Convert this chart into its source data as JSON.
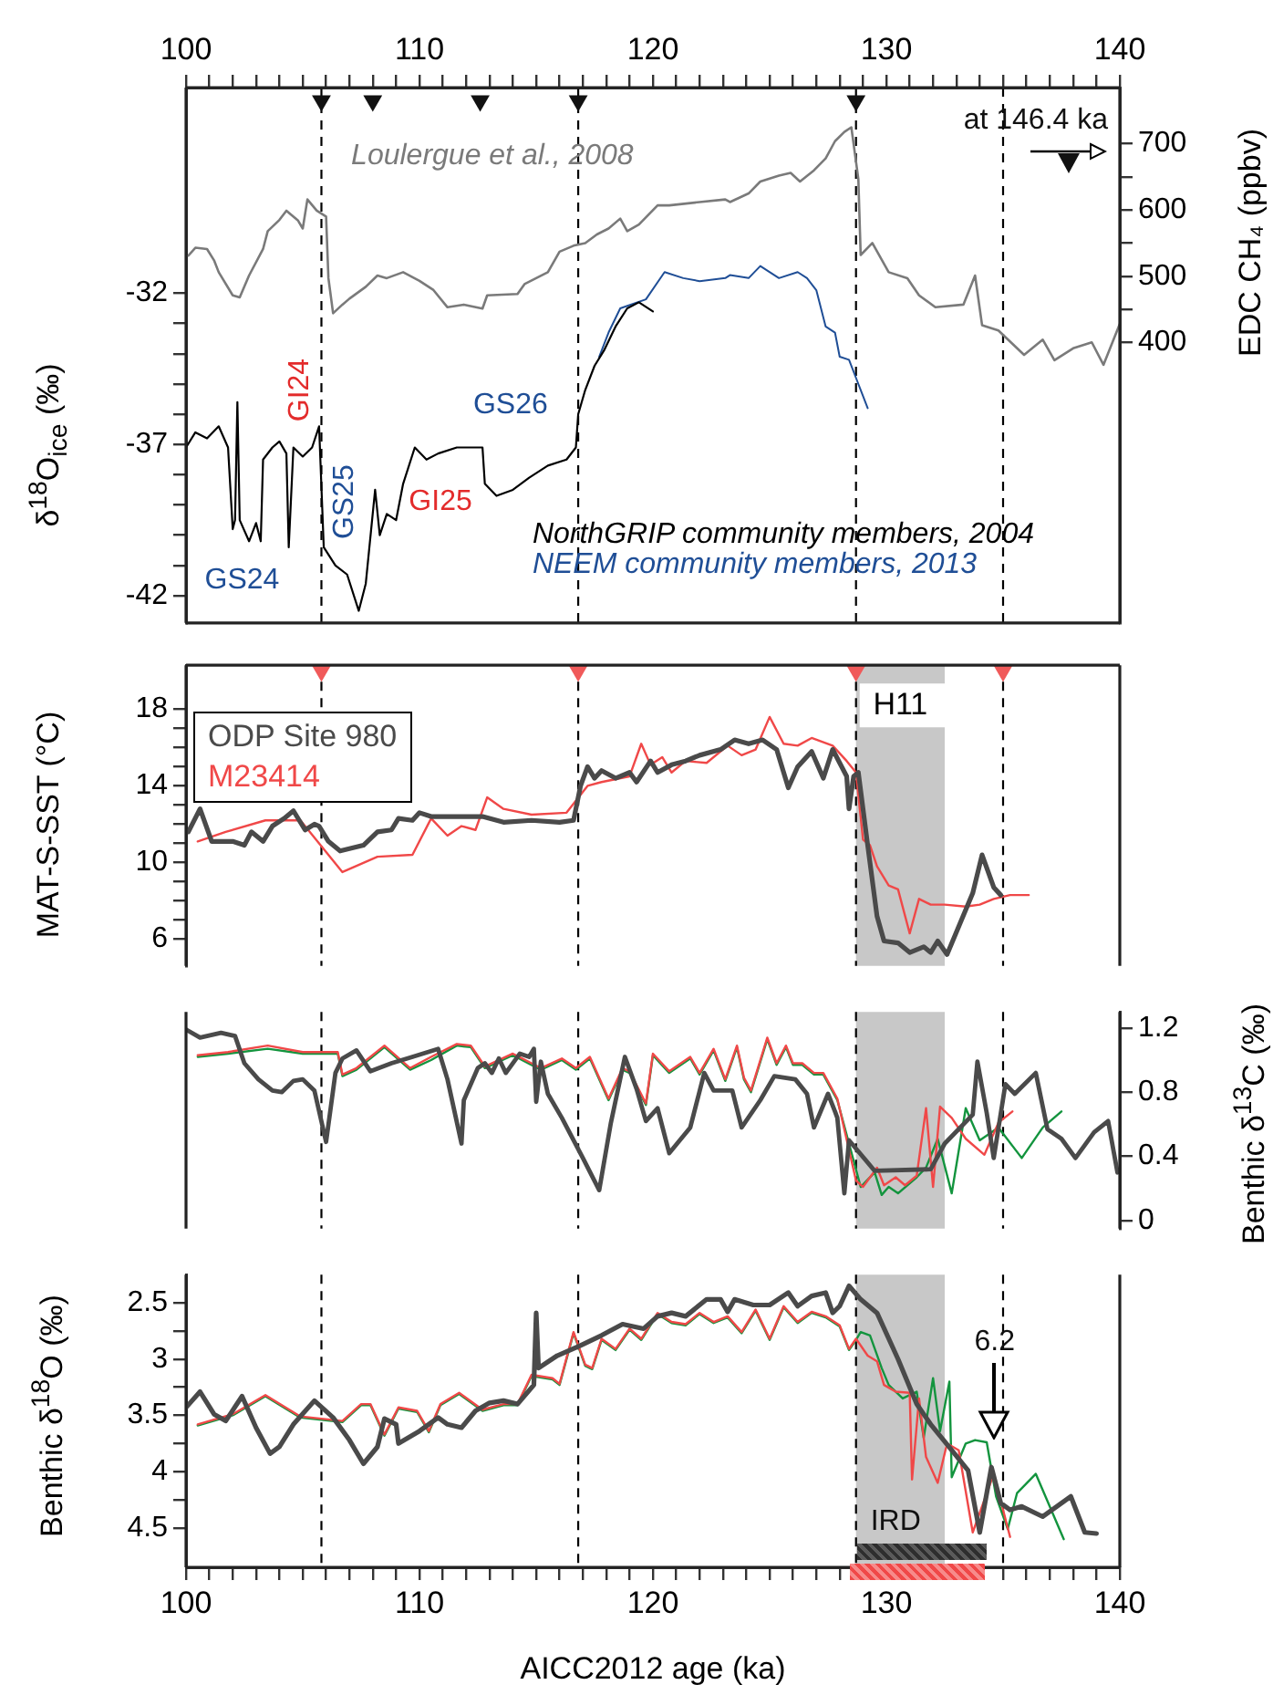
{
  "chart_data": [
    {
      "type": "line",
      "xlim": [
        100,
        140
      ],
      "xticks": [
        100,
        {
          "value": 101,
          "label": null
        },
        {
          "value": 102,
          "label": null
        },
        {
          "value": 103,
          "label": null
        },
        {
          "value": 104,
          "label": null
        },
        {
          "value": 105,
          "label": null
        },
        {
          "value": 106,
          "label": null
        },
        {
          "value": 107,
          "label": null
        },
        {
          "value": 108,
          "label": null
        },
        {
          "value": 109,
          "label": null
        },
        110,
        {
          "value": 111,
          "label": null
        },
        {
          "value": 112,
          "label": null
        },
        {
          "value": 113,
          "label": null
        },
        {
          "value": 114,
          "label": null
        },
        {
          "value": 115,
          "label": null
        },
        {
          "value": 116,
          "label": null
        },
        {
          "value": 117,
          "label": null
        },
        {
          "value": 118,
          "label": null
        },
        {
          "value": 119,
          "label": null
        },
        120,
        {
          "value": 121,
          "label": null
        },
        {
          "value": 122,
          "label": null
        },
        {
          "value": 123,
          "label": null
        },
        {
          "value": 124,
          "label": null
        },
        {
          "value": 125,
          "label": null
        },
        {
          "value": 126,
          "label": null
        },
        {
          "value": 127,
          "label": null
        },
        {
          "value": 128,
          "label": null
        },
        {
          "value": 129,
          "label": null
        },
        130,
        {
          "value": 131,
          "label": null
        },
        {
          "value": 132,
          "label": null
        },
        {
          "value": 133,
          "label": null
        },
        {
          "value": 134,
          "label": null
        },
        {
          "value": 135,
          "label": null
        },
        {
          "value": 136,
          "label": null
        },
        {
          "value": 137,
          "label": null
        },
        {
          "value": 138,
          "label": null
        },
        {
          "value": 139,
          "label": null
        },
        140
      ],
      "ylim": [
        -42.9,
        -25.2
      ],
      "yticks": [
        -42,
        {
          "value": -41,
          "label": null
        },
        {
          "value": -40,
          "label": null
        },
        {
          "value": -39,
          "label": null
        },
        {
          "value": -38,
          "label": null
        },
        -37,
        {
          "value": -36,
          "label": null
        },
        {
          "value": -35,
          "label": null
        },
        {
          "value": -34,
          "label": null
        },
        {
          "value": -33,
          "label": null
        },
        -32
      ],
      "ylabel": "δ$^{18}$O$_{ice}$ (‰)",
      "y2lim": [
        -24,
        785
      ],
      "y2ticks": [
        400,
        {
          "value": 450,
          "label": null
        },
        500,
        {
          "value": 550,
          "label": null
        },
        600,
        {
          "value": 650,
          "label": null
        },
        700
      ],
      "y2label": "EDC CH₄ (ppbv)",
      "series": [
        {
          "name": "Loulergue et al., 2008",
          "color": "#7a7a7a",
          "axis": "y2",
          "x": [
            100.1,
            100.4,
            100.9,
            101.2,
            101.4,
            102.0,
            102.3,
            102.7,
            103.3,
            103.5,
            104.0,
            104.3,
            104.8,
            105.0,
            105.2,
            105.6,
            106.0,
            106.1,
            106.3,
            106.7,
            107.0,
            107.7,
            108.2,
            108.6,
            109.3,
            110.0,
            110.6,
            111.2,
            111.9,
            112.7,
            112.9,
            114.2,
            114.5,
            115.0,
            115.5,
            116.0,
            116.6,
            117.1,
            117.6,
            118.1,
            118.6,
            118.9,
            119.4,
            120.2,
            120.7,
            122.0,
            123.1,
            123.3,
            124.1,
            124.6,
            125.4,
            125.9,
            126.3,
            126.9,
            127.4,
            127.8,
            128.2,
            128.5,
            128.8,
            128.9,
            129.4,
            130.1,
            130.9,
            131.4,
            132.1,
            133.3,
            133.8,
            134.1,
            134.8,
            135.9,
            136.7,
            137.2,
            138.0,
            138.8,
            139.3,
            140.0
          ],
          "values": [
            531,
            543,
            541,
            524,
            506,
            471,
            468,
            501,
            541,
            568,
            585,
            599,
            584,
            572,
            616,
            599,
            590,
            497,
            444,
            457,
            466,
            484,
            501,
            497,
            506,
            493,
            479,
            453,
            457,
            451,
            471,
            473,
            488,
            497,
            506,
            537,
            546,
            550,
            563,
            572,
            587,
            568,
            578,
            607,
            607,
            612,
            616,
            612,
            625,
            643,
            652,
            656,
            643,
            660,
            678,
            704,
            718,
            725,
            647,
            532,
            550,
            506,
            497,
            471,
            453,
            457,
            501,
            426,
            418,
            381,
            404,
            373,
            391,
            400,
            366,
            428
          ]
        },
        {
          "name": "NorthGRIP community members, 2004",
          "color": "#000000",
          "x": [
            100.0,
            100.4,
            100.9,
            101.4,
            101.8,
            102.0,
            102.1,
            102.2,
            102.3,
            102.7,
            103.0,
            103.2,
            103.3,
            103.7,
            104.0,
            104.3,
            104.4,
            104.6,
            105.0,
            105.4,
            105.7,
            105.9,
            106.4,
            106.9,
            107.4,
            107.7,
            108.1,
            108.3,
            108.6,
            109.0,
            109.3,
            109.8,
            110.3,
            110.8,
            111.6,
            112.7,
            112.8,
            113.3,
            114.0,
            114.7,
            115.5,
            116.3,
            116.7,
            116.8,
            117.1,
            117.5,
            117.9,
            118.4,
            118.9,
            119.4,
            120.0
          ],
          "values": [
            -37.1,
            -36.6,
            -36.8,
            -36.4,
            -37.1,
            -39.8,
            -39.5,
            -35.6,
            -39.5,
            -40.2,
            -39.6,
            -40.2,
            -37.5,
            -37.1,
            -36.9,
            -37.3,
            -40.4,
            -37.1,
            -37.4,
            -37.1,
            -36.4,
            -40.4,
            -41.0,
            -41.3,
            -42.5,
            -41.6,
            -38.5,
            -40.0,
            -39.3,
            -39.5,
            -38.3,
            -37.1,
            -37.5,
            -37.3,
            -37.1,
            -37.1,
            -38.3,
            -38.7,
            -38.5,
            -38.1,
            -37.7,
            -37.5,
            -37.1,
            -36.0,
            -35.2,
            -34.4,
            -33.9,
            -33.1,
            -32.5,
            -32.3,
            -32.6
          ]
        },
        {
          "name": "NEEM community members, 2013",
          "color": "#1f4e96",
          "x": [
            117.7,
            118.1,
            118.6,
            119.7,
            120.5,
            121.3,
            122.0,
            123.1,
            123.3,
            124.1,
            124.6,
            125.4,
            126.2,
            126.6,
            127.0,
            127.4,
            127.8,
            128.0,
            128.4,
            128.7,
            129.0,
            129.2
          ],
          "values": [
            -34.1,
            -33.3,
            -32.5,
            -32.2,
            -31.3,
            -31.5,
            -31.6,
            -31.5,
            -31.4,
            -31.5,
            -31.1,
            -31.5,
            -31.3,
            -31.5,
            -31.9,
            -33.1,
            -33.3,
            -34.1,
            -34.2,
            -34.8,
            -35.4,
            -35.8
          ]
        },
        {
          "type": "scatter",
          "marker": "triangle",
          "color": "#111111",
          "axis": "y2",
          "x": [
            105.8,
            108.0,
            112.6,
            116.8,
            128.7
          ],
          "values": [
            765,
            765,
            765,
            765,
            765
          ]
        }
      ],
      "annotations": [
        "GS24",
        "GI24",
        "GS25",
        "GI25",
        "GS26",
        "at 146.4 ka"
      ],
      "ref_lines": [
        {
          "axis": "x",
          "value": 105.8,
          "color": "#000000",
          "line_style": "dashed"
        },
        {
          "axis": "x",
          "value": 116.8,
          "color": "#000000",
          "line_style": "dashed"
        },
        {
          "axis": "x",
          "value": 128.7,
          "color": "#000000",
          "line_style": "dashed"
        },
        {
          "axis": "x",
          "value": 135.0,
          "color": "#000000",
          "line_style": "dashed"
        }
      ]
    },
    {
      "type": "line",
      "xlim": [
        100,
        140
      ],
      "tick_labels": "y",
      "ylim": [
        4.6,
        20.3
      ],
      "yticks": [
        6,
        {
          "value": 7,
          "label": null
        },
        {
          "value": 8,
          "label": null
        },
        {
          "value": 9,
          "label": null
        },
        10,
        {
          "value": 11,
          "label": null
        },
        {
          "value": 12,
          "label": null
        },
        {
          "value": 13,
          "label": null
        },
        14,
        {
          "value": 15,
          "label": null
        },
        {
          "value": 16,
          "label": null
        },
        {
          "value": 17,
          "label": null
        },
        18
      ],
      "ylabel": "MAT-S-SST (°C)",
      "legend": "top left",
      "series": [
        {
          "name": "ODP Site 980",
          "color": "#4a4a4a",
          "x": [
            100.1,
            100.6,
            101.1,
            102.0,
            102.5,
            102.8,
            103.3,
            103.7,
            104.2,
            104.6,
            105.1,
            105.5,
            105.7,
            106.1,
            106.6,
            107.6,
            108.2,
            108.8,
            109.1,
            109.7,
            110.0,
            110.5,
            111.2,
            112.7,
            113.6,
            114.8,
            116.0,
            116.6,
            116.9,
            117.2,
            117.5,
            117.8,
            118.4,
            119.0,
            119.3,
            119.9,
            120.2,
            120.8,
            121.4,
            122.0,
            122.9,
            123.5,
            124.1,
            124.7,
            125.3,
            125.8,
            126.2,
            126.8,
            127.3,
            127.7,
            128.3,
            128.4,
            128.6,
            128.8,
            129.2,
            129.6,
            129.9,
            130.5,
            131.0,
            131.6,
            131.9,
            132.2,
            132.6,
            133.7,
            134.1,
            134.6,
            134.9
          ],
          "values": [
            11.6,
            12.8,
            11.1,
            11.1,
            10.9,
            11.6,
            11.1,
            11.9,
            12.3,
            12.7,
            11.7,
            12.0,
            11.9,
            11.1,
            10.6,
            10.9,
            11.6,
            11.7,
            12.3,
            12.2,
            12.6,
            12.4,
            12.4,
            12.4,
            12.1,
            12.2,
            12.1,
            12.2,
            14.0,
            15.0,
            14.4,
            14.8,
            14.4,
            14.7,
            14.2,
            15.3,
            14.7,
            15.1,
            15.3,
            15.6,
            15.9,
            16.4,
            16.2,
            16.4,
            15.9,
            13.9,
            15.0,
            15.8,
            14.4,
            15.9,
            14.5,
            12.8,
            14.5,
            14.7,
            10.9,
            7.2,
            5.9,
            5.8,
            5.3,
            5.6,
            5.3,
            5.9,
            5.2,
            8.4,
            10.4,
            8.7,
            8.3
          ]
        },
        {
          "name": "M23414",
          "color": "#f04848",
          "x": [
            100.5,
            101.7,
            103.4,
            104.9,
            106.7,
            108.2,
            109.7,
            110.5,
            111.2,
            111.8,
            112.4,
            112.9,
            113.6,
            114.8,
            116.3,
            117.2,
            117.8,
            119.0,
            119.5,
            119.9,
            120.4,
            120.8,
            121.4,
            122.3,
            123.2,
            123.8,
            124.4,
            125.0,
            125.6,
            126.2,
            126.8,
            127.7,
            128.3,
            128.7,
            129.0,
            129.3,
            129.6,
            130.1,
            130.5,
            131.0,
            131.4,
            131.9,
            132.5,
            133.4,
            134.0,
            134.6,
            135.3,
            136.1
          ],
          "values": [
            11.1,
            11.6,
            12.2,
            12.2,
            9.5,
            10.3,
            10.4,
            12.3,
            11.4,
            11.9,
            11.7,
            13.4,
            12.8,
            12.5,
            12.6,
            14.0,
            14.2,
            14.5,
            16.2,
            15.1,
            15.5,
            14.7,
            15.3,
            15.2,
            16.1,
            15.6,
            15.9,
            17.6,
            16.2,
            16.1,
            16.5,
            16.1,
            15.3,
            14.7,
            11.2,
            10.9,
            9.8,
            8.8,
            8.6,
            6.3,
            8.1,
            7.8,
            7.8,
            7.7,
            7.8,
            8.1,
            8.3,
            8.3
          ]
        },
        {
          "type": "scatter",
          "marker": "triangle",
          "color": "#f05a5a",
          "x": [
            105.8,
            116.8,
            128.7,
            135.0
          ],
          "values": [
            20.0,
            20.0,
            20.0,
            20.0
          ]
        }
      ],
      "bands": [
        {
          "axis": "x",
          "from": 128.7,
          "to": 132.5,
          "label": "H11",
          "color": "#c8c8c8"
        }
      ],
      "ref_lines": [
        {
          "axis": "x",
          "value": 105.8,
          "color": "#000000",
          "line_style": "dashed"
        },
        {
          "axis": "x",
          "value": 116.8,
          "color": "#000000",
          "line_style": "dashed"
        },
        {
          "axis": "x",
          "value": 128.7,
          "color": "#000000",
          "line_style": "dashed"
        },
        {
          "axis": "x",
          "value": 135.0,
          "color": "#000000",
          "line_style": "dashed"
        }
      ]
    },
    {
      "type": "line",
      "xlim": [
        100,
        140
      ],
      "tick_labels": "y",
      "y2lim": [
        -0.05,
        1.3
      ],
      "y2ticks": [
        0,
        0.4,
        0.8,
        1.2
      ],
      "y2label": "Benthic δ$^{13}$C (‰)",
      "series": [
        {
          "color": "#4a4a4a",
          "axis": "y2",
          "x": [
            100.0,
            100.6,
            101.5,
            102.1,
            102.5,
            103.1,
            103.7,
            104.1,
            104.6,
            105.0,
            105.5,
            106.0,
            106.4,
            106.7,
            107.3,
            107.9,
            108.8,
            109.7,
            110.8,
            111.2,
            111.8,
            111.9,
            112.5,
            112.8,
            113.1,
            113.4,
            113.7,
            114.3,
            114.7,
            114.9,
            115.0,
            115.2,
            115.5,
            116.1,
            117.0,
            117.7,
            118.2,
            118.8,
            119.3,
            119.7,
            120.2,
            120.7,
            121.6,
            122.2,
            122.6,
            123.4,
            123.8,
            124.6,
            125.2,
            126.1,
            126.6,
            126.9,
            127.5,
            127.8,
            127.9,
            128.2,
            128.4,
            129.5,
            131.9,
            132.5,
            133.7,
            133.9,
            134.3,
            134.6,
            135.1,
            135.5,
            136.4,
            136.9,
            137.5,
            138.1,
            138.9,
            139.5,
            139.9
          ],
          "values": [
            1.19,
            1.14,
            1.17,
            1.15,
            0.98,
            0.88,
            0.81,
            0.8,
            0.87,
            0.88,
            0.81,
            0.49,
            0.92,
            1.01,
            1.06,
            0.93,
            0.98,
            1.02,
            1.07,
            0.88,
            0.48,
            0.75,
            0.95,
            0.98,
            0.92,
            1.01,
            0.92,
            1.04,
            1.02,
            1.07,
            0.74,
            0.99,
            0.79,
            0.64,
            0.39,
            0.19,
            0.61,
            1.02,
            0.82,
            0.62,
            0.7,
            0.42,
            0.58,
            0.92,
            0.81,
            0.81,
            0.58,
            0.75,
            0.9,
            0.88,
            0.79,
            0.58,
            0.79,
            0.68,
            0.64,
            0.17,
            0.5,
            0.31,
            0.32,
            0.48,
            0.66,
            0.99,
            0.67,
            0.39,
            0.85,
            0.79,
            0.92,
            0.57,
            0.51,
            0.39,
            0.55,
            0.62,
            0.3
          ]
        },
        {
          "color": "#f04848",
          "axis": "y2",
          "x": [
            100.5,
            101.8,
            103.5,
            105.0,
            106.5,
            106.7,
            107.3,
            108.5,
            109.6,
            110.5,
            111.6,
            112.2,
            112.8,
            114.0,
            115.2,
            116.1,
            116.7,
            117.3,
            118.1,
            118.7,
            119.0,
            119.7,
            120.0,
            120.7,
            121.6,
            122.0,
            122.6,
            123.1,
            123.6,
            123.9,
            124.2,
            124.9,
            125.3,
            125.7,
            126.0,
            126.4,
            126.9,
            127.3,
            127.9,
            128.7,
            129.0,
            129.6,
            129.9,
            130.4,
            130.8,
            131.3,
            131.7,
            132.0,
            132.3,
            132.8,
            133.4,
            134.2,
            134.8,
            135.4
          ],
          "values": [
            1.03,
            1.05,
            1.09,
            1.05,
            1.05,
            0.91,
            0.95,
            1.09,
            0.95,
            1.02,
            1.1,
            1.09,
            0.96,
            1.04,
            0.95,
            1.01,
            0.95,
            1.02,
            0.76,
            0.95,
            0.93,
            0.73,
            1.04,
            0.93,
            1.02,
            0.92,
            1.07,
            0.88,
            1.09,
            0.89,
            0.81,
            1.14,
            0.98,
            1.09,
            0.98,
            0.98,
            0.92,
            0.92,
            0.76,
            0.25,
            0.21,
            0.33,
            0.22,
            0.27,
            0.22,
            0.28,
            0.7,
            0.21,
            0.71,
            0.64,
            0.51,
            0.41,
            0.61,
            0.68
          ]
        },
        {
          "color": "#13943e",
          "axis": "y2",
          "x": [
            100.5,
            101.8,
            103.5,
            105.0,
            106.5,
            106.7,
            107.3,
            108.5,
            109.6,
            110.5,
            111.6,
            112.2,
            112.8,
            114.0,
            115.2,
            116.1,
            116.7,
            117.3,
            118.1,
            118.7,
            119.0,
            119.7,
            120.0,
            120.7,
            121.6,
            122.0,
            122.6,
            123.1,
            123.6,
            123.9,
            124.2,
            124.9,
            125.3,
            125.7,
            126.0,
            126.4,
            126.9,
            127.3,
            127.9,
            128.9,
            129.5,
            129.8,
            130.1,
            130.5,
            131.3,
            131.7,
            132.2,
            132.8,
            133.4,
            134.0,
            134.8,
            135.8,
            136.7,
            137.5
          ],
          "values": [
            1.02,
            1.04,
            1.07,
            1.04,
            1.04,
            0.9,
            0.94,
            1.08,
            0.94,
            1.0,
            1.09,
            1.08,
            0.95,
            1.03,
            0.94,
            1.0,
            0.94,
            1.01,
            0.75,
            0.94,
            0.92,
            0.72,
            1.03,
            0.92,
            1.01,
            0.91,
            1.06,
            0.87,
            1.08,
            0.88,
            0.8,
            1.13,
            0.97,
            1.08,
            0.97,
            0.97,
            0.91,
            0.91,
            0.75,
            0.21,
            0.3,
            0.16,
            0.21,
            0.17,
            0.27,
            0.33,
            0.51,
            0.17,
            0.7,
            0.5,
            0.58,
            0.39,
            0.58,
            0.68
          ]
        }
      ],
      "bands": [
        {
          "axis": "x",
          "from": 128.7,
          "to": 132.5,
          "color": "#c8c8c8"
        }
      ],
      "ref_lines": [
        {
          "axis": "x",
          "value": 105.8,
          "color": "#000000",
          "line_style": "dashed"
        },
        {
          "axis": "x",
          "value": 116.8,
          "color": "#000000",
          "line_style": "dashed"
        },
        {
          "axis": "x",
          "value": 128.7,
          "color": "#000000",
          "line_style": "dashed"
        },
        {
          "axis": "x",
          "value": 135.0,
          "color": "#000000",
          "line_style": "dashed"
        }
      ]
    },
    {
      "type": "line",
      "xlim": [
        100,
        140
      ],
      "xticks": [
        100,
        {
          "value": 101,
          "label": null
        },
        {
          "value": 102,
          "label": null
        },
        {
          "value": 103,
          "label": null
        },
        {
          "value": 104,
          "label": null
        },
        {
          "value": 105,
          "label": null
        },
        {
          "value": 106,
          "label": null
        },
        {
          "value": 107,
          "label": null
        },
        {
          "value": 108,
          "label": null
        },
        {
          "value": 109,
          "label": null
        },
        110,
        {
          "value": 111,
          "label": null
        },
        {
          "value": 112,
          "label": null
        },
        {
          "value": 113,
          "label": null
        },
        {
          "value": 114,
          "label": null
        },
        {
          "value": 115,
          "label": null
        },
        {
          "value": 116,
          "label": null
        },
        {
          "value": 117,
          "label": null
        },
        {
          "value": 118,
          "label": null
        },
        {
          "value": 119,
          "label": null
        },
        120,
        {
          "value": 121,
          "label": null
        },
        {
          "value": 122,
          "label": null
        },
        {
          "value": 123,
          "label": null
        },
        {
          "value": 124,
          "label": null
        },
        {
          "value": 125,
          "label": null
        },
        {
          "value": 126,
          "label": null
        },
        {
          "value": 127,
          "label": null
        },
        {
          "value": 128,
          "label": null
        },
        {
          "value": 129,
          "label": null
        },
        130,
        {
          "value": 131,
          "label": null
        },
        {
          "value": 132,
          "label": null
        },
        {
          "value": 133,
          "label": null
        },
        {
          "value": 134,
          "label": null
        },
        {
          "value": 135,
          "label": null
        },
        {
          "value": 136,
          "label": null
        },
        {
          "value": 137,
          "label": null
        },
        {
          "value": 138,
          "label": null
        },
        {
          "value": 139,
          "label": null
        },
        140
      ],
      "xlabel": "AICC2012 age (ka)",
      "ylim": [
        4.85,
        2.25
      ],
      "yticks": [
        2.5,
        {
          "value": 2.75,
          "label": null
        },
        3,
        {
          "value": 3.25,
          "label": null
        },
        3.5,
        {
          "value": 3.75,
          "label": null
        },
        4,
        {
          "value": 4.25,
          "label": null
        },
        4.5
      ],
      "ylabel": "Benthic δ$^{18}$O (‰)",
      "series": [
        {
          "color": "#4a4a4a",
          "x": [
            100.0,
            100.6,
            101.2,
            101.7,
            102.4,
            103.0,
            103.6,
            104.0,
            104.6,
            105.5,
            106.3,
            107.0,
            107.6,
            108.2,
            108.5,
            109.0,
            109.1,
            110.0,
            110.8,
            111.2,
            111.8,
            112.4,
            113.0,
            113.6,
            114.2,
            114.9,
            115.0,
            115.1,
            115.9,
            116.9,
            117.8,
            118.7,
            119.6,
            120.2,
            120.8,
            121.4,
            122.3,
            122.9,
            123.2,
            123.5,
            124.3,
            125.0,
            125.8,
            126.2,
            126.8,
            127.4,
            127.7,
            128.0,
            128.4,
            128.9,
            129.6,
            130.5,
            131.3,
            131.9,
            132.8,
            133.5,
            134.0,
            134.5,
            134.9,
            135.3,
            135.8,
            136.7,
            137.9,
            138.5,
            139.0
          ],
          "values": [
            3.43,
            3.29,
            3.49,
            3.55,
            3.33,
            3.61,
            3.84,
            3.78,
            3.58,
            3.37,
            3.52,
            3.72,
            3.93,
            3.78,
            3.53,
            3.58,
            3.75,
            3.64,
            3.52,
            3.58,
            3.61,
            3.46,
            3.39,
            3.37,
            3.4,
            3.23,
            2.59,
            3.08,
            2.97,
            2.88,
            2.79,
            2.69,
            2.73,
            2.62,
            2.59,
            2.62,
            2.47,
            2.47,
            2.58,
            2.47,
            2.52,
            2.52,
            2.41,
            2.53,
            2.44,
            2.41,
            2.59,
            2.53,
            2.35,
            2.47,
            2.59,
            3.0,
            3.4,
            3.58,
            3.81,
            3.99,
            4.54,
            3.96,
            4.28,
            4.34,
            4.31,
            4.4,
            4.22,
            4.54,
            4.55
          ]
        },
        {
          "color": "#f04848",
          "x": [
            100.5,
            102.0,
            103.4,
            104.9,
            106.7,
            107.5,
            107.9,
            108.5,
            109.1,
            109.9,
            110.4,
            110.9,
            111.7,
            112.7,
            113.6,
            114.2,
            114.8,
            115.7,
            116.0,
            116.6,
            117.1,
            117.4,
            117.8,
            118.4,
            119.0,
            119.5,
            120.2,
            120.8,
            121.4,
            122.0,
            122.6,
            123.2,
            123.8,
            124.4,
            125.0,
            125.6,
            126.2,
            126.8,
            127.4,
            128.0,
            128.4,
            128.7,
            129.2,
            129.6,
            129.9,
            130.4,
            131.0,
            131.1,
            131.4,
            131.7,
            132.2,
            132.6,
            133.1,
            133.7,
            134.6,
            135.3
          ],
          "values": [
            3.58,
            3.49,
            3.32,
            3.51,
            3.55,
            3.4,
            3.4,
            3.67,
            3.43,
            3.46,
            3.64,
            3.4,
            3.3,
            3.45,
            3.4,
            3.4,
            3.14,
            3.17,
            3.22,
            2.76,
            3.05,
            3.08,
            2.82,
            2.91,
            2.73,
            2.82,
            2.59,
            2.67,
            2.69,
            2.59,
            2.67,
            2.62,
            2.76,
            2.56,
            2.82,
            2.53,
            2.67,
            2.58,
            2.62,
            2.7,
            2.91,
            2.82,
            2.97,
            3.02,
            3.23,
            3.29,
            3.3,
            4.07,
            3.35,
            3.87,
            4.1,
            3.75,
            3.81,
            4.54,
            4.02,
            4.58
          ]
        },
        {
          "color": "#13943e",
          "x": [
            100.5,
            102.0,
            103.4,
            104.9,
            106.7,
            107.5,
            107.9,
            108.5,
            109.1,
            109.9,
            110.4,
            110.9,
            111.7,
            112.7,
            113.6,
            114.2,
            114.8,
            115.7,
            116.0,
            116.6,
            117.1,
            117.4,
            117.8,
            118.4,
            119.0,
            119.5,
            120.2,
            120.8,
            121.4,
            122.0,
            122.6,
            123.2,
            123.8,
            124.4,
            125.0,
            125.6,
            126.2,
            126.8,
            127.4,
            128.0,
            128.4,
            128.7,
            128.9,
            129.3,
            129.8,
            130.1,
            130.7,
            131.3,
            131.6,
            132.0,
            132.3,
            132.7,
            132.8,
            133.4,
            133.8,
            134.3,
            134.7,
            135.2,
            135.6,
            136.4,
            137.6
          ],
          "values": [
            3.59,
            3.5,
            3.33,
            3.52,
            3.56,
            3.41,
            3.41,
            3.68,
            3.44,
            3.47,
            3.65,
            3.41,
            3.31,
            3.46,
            3.41,
            3.41,
            3.15,
            3.18,
            3.23,
            2.77,
            3.06,
            3.09,
            2.83,
            2.92,
            2.74,
            2.83,
            2.6,
            2.68,
            2.7,
            2.6,
            2.68,
            2.63,
            2.77,
            2.57,
            2.83,
            2.54,
            2.68,
            2.59,
            2.63,
            2.71,
            2.92,
            2.83,
            2.76,
            2.79,
            3.08,
            3.23,
            3.35,
            3.29,
            3.7,
            3.17,
            3.64,
            3.2,
            4.05,
            3.75,
            3.72,
            3.74,
            4.22,
            4.51,
            4.19,
            4.02,
            4.6
          ]
        }
      ],
      "annotations": [
        "IRD",
        "6.2"
      ],
      "bands": [
        {
          "axis": "x",
          "from": 128.7,
          "to": 132.5,
          "color": "#c8c8c8"
        }
      ],
      "ref_lines": [
        {
          "axis": "x",
          "value": 105.8,
          "color": "#000000",
          "line_style": "dashed"
        },
        {
          "axis": "x",
          "value": 116.8,
          "color": "#000000",
          "line_style": "dashed"
        },
        {
          "axis": "x",
          "value": 128.7,
          "color": "#000000",
          "line_style": "dashed"
        },
        {
          "axis": "x",
          "value": 135.0,
          "color": "#000000",
          "line_style": "dashed"
        }
      ]
    }
  ]
}
